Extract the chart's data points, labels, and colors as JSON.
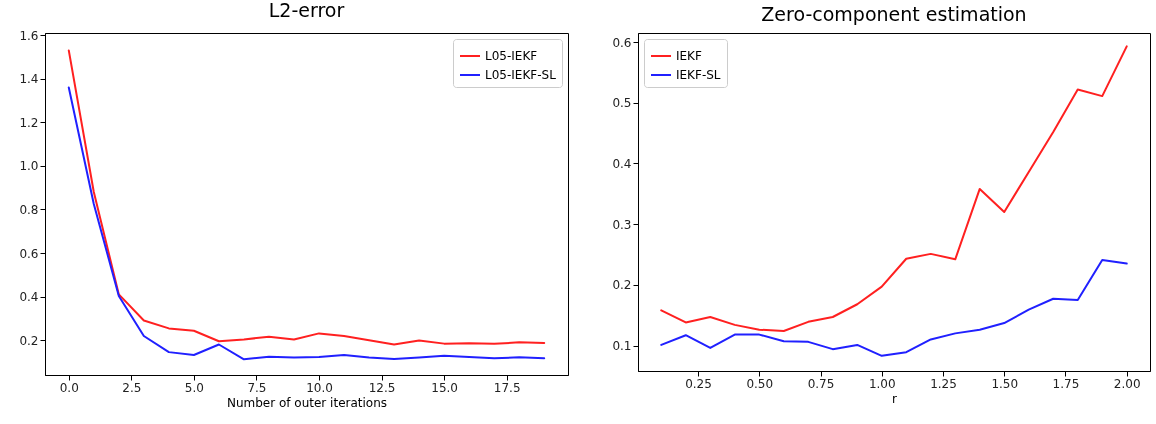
{
  "chart_data": [
    {
      "type": "line",
      "title": "L2-error",
      "xlabel": "Number of outer iterations",
      "x": [
        0,
        1,
        2,
        3,
        4,
        5,
        6,
        7,
        8,
        9,
        10,
        11,
        12,
        13,
        14,
        15,
        16,
        17,
        18,
        19
      ],
      "xlim": [
        -0.95,
        19.95
      ],
      "xticks": [
        {
          "value": 0,
          "label": "0.0"
        },
        {
          "value": 2.5,
          "label": "2.5"
        },
        {
          "value": 5,
          "label": "5.0"
        },
        {
          "value": 7.5,
          "label": "7.5"
        },
        {
          "value": 10,
          "label": "10.0"
        },
        {
          "value": 12.5,
          "label": "12.5"
        },
        {
          "value": 15,
          "label": "15.0"
        },
        {
          "value": 17.5,
          "label": "17.5"
        }
      ],
      "ylim": [
        0.04,
        1.61
      ],
      "yticks": [
        0.2,
        0.4,
        0.6,
        0.8,
        {
          "value": 1,
          "label": "1.0"
        },
        1.2,
        1.4,
        1.6
      ],
      "grid": false,
      "legend": "top right",
      "line_style": "solid",
      "series": [
        {
          "name": "L05-IEKF",
          "color": "#ff2020",
          "values": [
            1.53,
            0.88,
            0.41,
            0.29,
            0.254,
            0.243,
            0.195,
            0.203,
            0.216,
            0.203,
            0.231,
            0.219,
            0.2,
            0.18,
            0.198,
            0.184,
            0.186,
            0.183,
            0.19,
            0.187
          ]
        },
        {
          "name": "L05-IEKF-SL",
          "color": "#2020ff",
          "values": [
            1.36,
            0.825,
            0.403,
            0.219,
            0.145,
            0.132,
            0.18,
            0.112,
            0.124,
            0.12,
            0.123,
            0.132,
            0.12,
            0.113,
            0.12,
            0.128,
            0.123,
            0.117,
            0.121,
            0.117
          ]
        }
      ]
    },
    {
      "type": "line",
      "title": "Zero-component estimation",
      "xlabel": "r",
      "x": [
        0.1,
        0.2,
        0.3,
        0.4,
        0.5,
        0.6,
        0.7,
        0.8,
        0.9,
        1.0,
        1.1,
        1.2,
        1.3,
        1.4,
        1.5,
        1.6,
        1.7,
        1.8,
        1.9,
        2.0
      ],
      "xlim": [
        0.005,
        2.095
      ],
      "xticks": [
        0.25,
        {
          "value": 0.5,
          "label": "0.50"
        },
        0.75,
        {
          "value": 1,
          "label": "1.00"
        },
        1.25,
        {
          "value": 1.5,
          "label": "1.50"
        },
        1.75,
        {
          "value": 2,
          "label": "2.00"
        }
      ],
      "ylim": [
        0.058,
        0.615
      ],
      "yticks": [
        0.1,
        0.2,
        0.3,
        0.4,
        0.5,
        0.6
      ],
      "grid": false,
      "legend": "top left",
      "line_style": "solid",
      "series": [
        {
          "name": "IEKF",
          "color": "#ff2020",
          "values": [
            0.158,
            0.138,
            0.147,
            0.134,
            0.126,
            0.124,
            0.139,
            0.147,
            0.168,
            0.197,
            0.243,
            0.251,
            0.242,
            0.358,
            0.32,
            0.386,
            0.452,
            0.522,
            0.511,
            0.593
          ]
        },
        {
          "name": "IEKF-SL",
          "color": "#2020ff",
          "values": [
            0.101,
            0.117,
            0.096,
            0.118,
            0.118,
            0.107,
            0.106,
            0.094,
            0.101,
            0.083,
            0.089,
            0.11,
            0.12,
            0.126,
            0.137,
            0.159,
            0.177,
            0.175,
            0.241,
            0.235
          ]
        }
      ]
    }
  ]
}
